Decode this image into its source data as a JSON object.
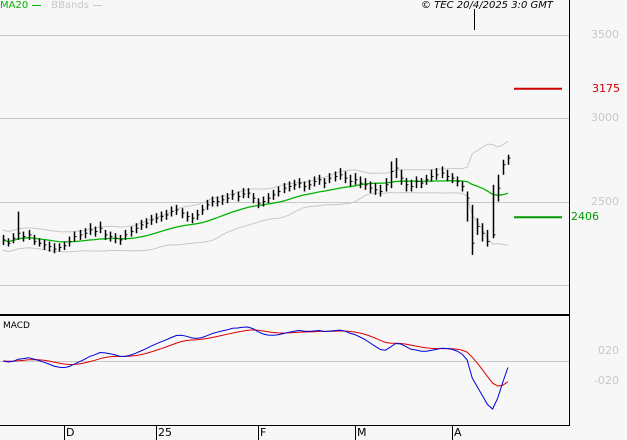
{
  "legend": {
    "ma": "MA20",
    "bbands": "BBands"
  },
  "copyright": "© TEC 20/4/2025 3:0 GMT",
  "macd_title": "MACD",
  "colors": {
    "ma": "#00b400",
    "bbands": "#c8c8c8",
    "bars": "#000000",
    "macd": "#0000dd",
    "signal": "#dd0000",
    "resistance": "#cc0000",
    "support": "#009900"
  },
  "chart_data": [
    {
      "type": "ohlc",
      "title": "",
      "ylim": [
        1823,
        3710
      ],
      "y_ticks": [
        {
          "value": 3500,
          "label": "3500"
        },
        {
          "value": 3000,
          "label": "3000"
        },
        {
          "value": 2500,
          "label": "2500"
        },
        {
          "value": 2000,
          "label": ""
        }
      ],
      "grid": true,
      "indicators": [
        "MA20",
        "BBands"
      ],
      "levels": [
        {
          "value": 3175,
          "label": "3175",
          "color": "#cc0000"
        },
        {
          "value": 2406,
          "label": "2406",
          "color": "#009900"
        }
      ],
      "x_labels": [
        {
          "label": "D",
          "at_bar": 12
        },
        {
          "label": "25",
          "at_bar": 30
        },
        {
          "label": "F",
          "at_bar": 50
        },
        {
          "label": "M",
          "at_bar": 69
        },
        {
          "label": "A",
          "at_bar": 88
        }
      ],
      "bars_hlc": [
        [
          2300,
          2240,
          2270
        ],
        [
          2280,
          2230,
          2250
        ],
        [
          2310,
          2250,
          2280
        ],
        [
          2440,
          2270,
          2310
        ],
        [
          2320,
          2260,
          2290
        ],
        [
          2330,
          2270,
          2300
        ],
        [
          2300,
          2240,
          2260
        ],
        [
          2280,
          2230,
          2250
        ],
        [
          2270,
          2210,
          2240
        ],
        [
          2260,
          2200,
          2230
        ],
        [
          2250,
          2190,
          2215
        ],
        [
          2250,
          2200,
          2225
        ],
        [
          2260,
          2210,
          2235
        ],
        [
          2290,
          2230,
          2260
        ],
        [
          2320,
          2260,
          2290
        ],
        [
          2330,
          2270,
          2300
        ],
        [
          2340,
          2280,
          2310
        ],
        [
          2370,
          2300,
          2330
        ],
        [
          2350,
          2290,
          2320
        ],
        [
          2380,
          2310,
          2340
        ],
        [
          2330,
          2270,
          2300
        ],
        [
          2320,
          2260,
          2290
        ],
        [
          2310,
          2250,
          2280
        ],
        [
          2300,
          2240,
          2270
        ],
        [
          2330,
          2270,
          2300
        ],
        [
          2350,
          2290,
          2320
        ],
        [
          2370,
          2310,
          2340
        ],
        [
          2390,
          2330,
          2360
        ],
        [
          2400,
          2340,
          2370
        ],
        [
          2420,
          2360,
          2390
        ],
        [
          2430,
          2370,
          2400
        ],
        [
          2440,
          2380,
          2410
        ],
        [
          2450,
          2390,
          2420
        ],
        [
          2470,
          2410,
          2440
        ],
        [
          2480,
          2420,
          2450
        ],
        [
          2460,
          2400,
          2430
        ],
        [
          2440,
          2380,
          2410
        ],
        [
          2430,
          2370,
          2400
        ],
        [
          2450,
          2390,
          2420
        ],
        [
          2480,
          2420,
          2450
        ],
        [
          2510,
          2450,
          2480
        ],
        [
          2530,
          2470,
          2500
        ],
        [
          2530,
          2470,
          2500
        ],
        [
          2540,
          2480,
          2510
        ],
        [
          2550,
          2490,
          2520
        ],
        [
          2570,
          2510,
          2540
        ],
        [
          2560,
          2500,
          2530
        ],
        [
          2580,
          2520,
          2545
        ],
        [
          2580,
          2520,
          2550
        ],
        [
          2550,
          2490,
          2520
        ],
        [
          2520,
          2460,
          2490
        ],
        [
          2530,
          2470,
          2500
        ],
        [
          2550,
          2490,
          2520
        ],
        [
          2570,
          2510,
          2540
        ],
        [
          2590,
          2530,
          2560
        ],
        [
          2610,
          2550,
          2580
        ],
        [
          2620,
          2560,
          2590
        ],
        [
          2630,
          2570,
          2600
        ],
        [
          2640,
          2580,
          2610
        ],
        [
          2620,
          2560,
          2590
        ],
        [
          2630,
          2570,
          2600
        ],
        [
          2650,
          2590,
          2620
        ],
        [
          2660,
          2600,
          2630
        ],
        [
          2640,
          2580,
          2610
        ],
        [
          2670,
          2610,
          2640
        ],
        [
          2680,
          2620,
          2650
        ],
        [
          2700,
          2630,
          2660
        ],
        [
          2680,
          2610,
          2640
        ],
        [
          2660,
          2590,
          2620
        ],
        [
          2670,
          2600,
          2630
        ],
        [
          2650,
          2580,
          2610
        ],
        [
          2640,
          2570,
          2600
        ],
        [
          2620,
          2550,
          2580
        ],
        [
          2610,
          2540,
          2570
        ],
        [
          2600,
          2530,
          2560
        ],
        [
          2640,
          2560,
          2600
        ],
        [
          2740,
          2580,
          2680
        ],
        [
          2760,
          2640,
          2700
        ],
        [
          2690,
          2600,
          2640
        ],
        [
          2640,
          2560,
          2600
        ],
        [
          2630,
          2560,
          2590
        ],
        [
          2650,
          2580,
          2620
        ],
        [
          2640,
          2580,
          2610
        ],
        [
          2660,
          2600,
          2630
        ],
        [
          2690,
          2620,
          2650
        ],
        [
          2700,
          2630,
          2660
        ],
        [
          2710,
          2640,
          2670
        ],
        [
          2690,
          2620,
          2650
        ],
        [
          2670,
          2610,
          2640
        ],
        [
          2650,
          2590,
          2620
        ],
        [
          2620,
          2560,
          2590
        ],
        [
          2560,
          2380,
          2520
        ],
        [
          2480,
          2180,
          2250
        ],
        [
          2400,
          2300,
          2350
        ],
        [
          2370,
          2260,
          2310
        ],
        [
          2330,
          2230,
          2260
        ],
        [
          2600,
          2280,
          2300
        ],
        [
          2660,
          2500,
          2580
        ],
        [
          2750,
          2660,
          2720
        ],
        [
          2780,
          2720,
          2760
        ]
      ]
    },
    {
      "type": "line",
      "title": "MACD",
      "y_ticks": [
        {
          "value": 0.2,
          "label": "020"
        },
        {
          "value": -0.2,
          "label": "-020"
        }
      ],
      "series": [
        "macd",
        "signal"
      ],
      "x_labels": [
        "D",
        "25",
        "F",
        "M",
        "A"
      ]
    }
  ]
}
